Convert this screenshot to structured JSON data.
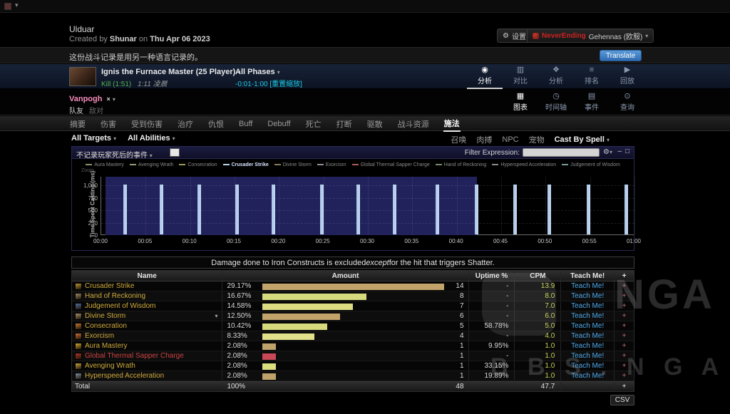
{
  "icons": {
    "caret": "▾",
    "gear": "⚙",
    "eye": "◉",
    "compare": "▥",
    "puzzle": "❖",
    "ranking": "≡",
    "replay": "▶",
    "grid": "▦",
    "clock": "◷",
    "list": "▤",
    "pin": "⊙",
    "close": "×",
    "minimize": "–",
    "maximize": "□",
    "plus": "+"
  },
  "header": {
    "title": "Ulduar",
    "created_prefix": "Created by",
    "author": "Shunar",
    "created_mid": "on",
    "created_date": "Thu Apr 06 2023",
    "settings_label": "设置",
    "guild_name": "NeverEnding",
    "guild_server": "Gehennas (欧服)"
  },
  "language_banner": {
    "text": "这份战斗记录是用另一种语言记录的。",
    "translate_label": "Translate"
  },
  "fight_bar": {
    "boss_name": "Ignis the Furnace Master (25 Player)",
    "kill_label": "Kill (1:51)",
    "kill_time": "1:11 凌晨",
    "phases_label": "All Phases",
    "time_range": "-0:01-1:00",
    "reset_zoom_label": "[重置缩放]",
    "views": [
      {
        "label": "分析",
        "icon": "eye",
        "active": true
      },
      {
        "label": "对比",
        "icon": "compare",
        "active": false
      },
      {
        "label": "分析",
        "icon": "puzzle",
        "active": false
      },
      {
        "label": "排名",
        "icon": "ranking",
        "active": false
      },
      {
        "label": "回放",
        "icon": "replay",
        "active": false
      }
    ]
  },
  "player_bar": {
    "player_name": "Vanpogh",
    "groups": [
      {
        "label": "队友",
        "active": true
      },
      {
        "label": "敌对",
        "active": false
      }
    ],
    "views": [
      {
        "label": "图表",
        "icon": "grid",
        "active": true
      },
      {
        "label": "时间轴",
        "icon": "clock",
        "active": false
      },
      {
        "label": "事件",
        "icon": "list",
        "active": false
      },
      {
        "label": "查询",
        "icon": "pin",
        "active": false
      }
    ]
  },
  "tabs": {
    "items": [
      "摘要",
      "伤害",
      "受到伤害",
      "治疗",
      "仇恨",
      "Buff",
      "Debuff",
      "死亡",
      "打断",
      "驱散",
      "战斗资源",
      "施法"
    ],
    "active_index": 11
  },
  "filter_bar": {
    "targets_label": "All Targets",
    "abilities_label": "All Abilities",
    "right_items": [
      "召唤",
      "肉搏",
      "NPC",
      "宠物"
    ],
    "cast_by_label": "Cast By Spell"
  },
  "chart_panel": {
    "option_label": "不记录玩家死后的事件",
    "filter_label": "Filter Expression:",
    "filter_value": ""
  },
  "chart_data": {
    "type": "bar",
    "title": "",
    "xlabel": "",
    "ylabel": "Time Spent Casting (ms)",
    "zoom_label": "Zoom",
    "ylim": [
      0,
      1171
    ],
    "grid": true,
    "legend_position": "top",
    "yticks": [
      {
        "v": 1000,
        "label": "1,000"
      },
      {
        "v": 750,
        "label": "750"
      },
      {
        "v": 500,
        "label": "500"
      },
      {
        "v": 250,
        "label": "250"
      },
      {
        "v": 0,
        "label": "0"
      }
    ],
    "xticks": [
      {
        "s": 0,
        "label": "00:00"
      },
      {
        "s": 5,
        "label": "00:05"
      },
      {
        "s": 10,
        "label": "00:10"
      },
      {
        "s": 15,
        "label": "00:15"
      },
      {
        "s": 20,
        "label": "00:20"
      },
      {
        "s": 25,
        "label": "00:25"
      },
      {
        "s": 30,
        "label": "00:30"
      },
      {
        "s": 35,
        "label": "00:35"
      },
      {
        "s": 40,
        "label": "00:40"
      },
      {
        "s": 45,
        "label": "00:45"
      },
      {
        "s": 50,
        "label": "00:50"
      },
      {
        "s": 55,
        "label": "00:55"
      },
      {
        "s": 60,
        "label": "01:00"
      }
    ],
    "selection_seconds": [
      0.5,
      42.3
    ],
    "highlight_series": "Crusader Strike",
    "bar_color": "#a9c6e8",
    "x_seconds": [
      2.7,
      6.8,
      11.0,
      15.3,
      19.4,
      24.8,
      28.9,
      33.0,
      37.8,
      42.2,
      46.6,
      50.4,
      54.8,
      59.1
    ],
    "values_ms": [
      1000,
      1000,
      1000,
      1000,
      1000,
      1000,
      1000,
      1000,
      1000,
      1000,
      1000,
      1000,
      1000,
      1000
    ],
    "legend": [
      {
        "label": "Aura Mastery",
        "color": "#8f8f6f",
        "highlight": false
      },
      {
        "label": "Avenging Wrath",
        "color": "#9a9a7a",
        "highlight": false
      },
      {
        "label": "Consecration",
        "color": "#9a9a5a",
        "highlight": false
      },
      {
        "label": "Crusader Strike",
        "color": "#bcd2f0",
        "highlight": true
      },
      {
        "label": "Divine Storm",
        "color": "#8a7a5a",
        "highlight": false
      },
      {
        "label": "Exorcism",
        "color": "#9a8a9a",
        "highlight": false
      },
      {
        "label": "Global Thermal Sapper Charge",
        "color": "#aa5a5a",
        "highlight": false
      },
      {
        "label": "Hand of Reckoning",
        "color": "#7a8a6a",
        "highlight": false
      },
      {
        "label": "Hyperspeed Acceleration",
        "color": "#8a8a8a",
        "highlight": false
      },
      {
        "label": "Judgement of Wisdom",
        "color": "#7a9a9a",
        "highlight": false
      }
    ]
  },
  "notice": {
    "text_before": "Damage done to Iron Constructs is excluded ",
    "text_em": "except",
    "text_after": " for the hit that triggers Shatter."
  },
  "table": {
    "columns": [
      "Name",
      "Amount",
      "Uptime %",
      "CPM",
      "Teach Me!",
      "+"
    ],
    "teach_label": "Teach Me!",
    "rows": [
      {
        "name": "Crusader Strike",
        "pct": "29.17%",
        "pct_v": 29.17,
        "count": "14",
        "uptime": "-",
        "cpm": "13.9",
        "bar_color": "#c2a36a",
        "name_color": "#d0ab3c",
        "icon_color": "#b8932f",
        "has_caret": false
      },
      {
        "name": "Hand of Reckoning",
        "pct": "16.67%",
        "pct_v": 16.67,
        "count": "8",
        "uptime": "-",
        "cpm": "8.0",
        "bar_color": "#d6da7c",
        "name_color": "#d0ab3c",
        "icon_color": "#9a8a68",
        "has_caret": false
      },
      {
        "name": "Judgement of Wisdom",
        "pct": "14.58%",
        "pct_v": 14.58,
        "count": "7",
        "uptime": "-",
        "cpm": "7.0",
        "bar_color": "#dcdc82",
        "name_color": "#d0ab3c",
        "icon_color": "#4f6f9f",
        "has_caret": false
      },
      {
        "name": "Divine Storm",
        "pct": "12.50%",
        "pct_v": 12.5,
        "count": "6",
        "uptime": "-",
        "cpm": "6.0",
        "bar_color": "#c2a36a",
        "name_color": "#d0ab3c",
        "icon_color": "#a8906a",
        "has_caret": true
      },
      {
        "name": "Consecration",
        "pct": "10.42%",
        "pct_v": 10.42,
        "count": "5",
        "uptime": "58.78%",
        "cpm": "5.0",
        "bar_color": "#d6da7c",
        "name_color": "#d0ab3c",
        "icon_color": "#c47a2e",
        "has_caret": false
      },
      {
        "name": "Exorcism",
        "pct": "8.33%",
        "pct_v": 8.33,
        "count": "4",
        "uptime": "-",
        "cpm": "4.0",
        "bar_color": "#e0e08a",
        "name_color": "#d0ab3c",
        "icon_color": "#cf7030",
        "has_caret": false
      },
      {
        "name": "Aura Mastery",
        "pct": "2.08%",
        "pct_v": 2.08,
        "count": "1",
        "uptime": "9.95%",
        "cpm": "1.0",
        "bar_color": "#bfa26a",
        "name_color": "#d0ab3c",
        "icon_color": "#d2a62e",
        "has_caret": false
      },
      {
        "name": "Global Thermal Sapper Charge",
        "pct": "2.08%",
        "pct_v": 2.08,
        "count": "1",
        "uptime": "-",
        "cpm": "1.0",
        "bar_color": "#c84858",
        "name_color": "#cc4242",
        "icon_color": "#b03424",
        "has_caret": false
      },
      {
        "name": "Avenging Wrath",
        "pct": "2.08%",
        "pct_v": 2.08,
        "count": "1",
        "uptime": "33.15%",
        "cpm": "1.0",
        "bar_color": "#dade7e",
        "name_color": "#d0ab3c",
        "icon_color": "#caa43c",
        "has_caret": false
      },
      {
        "name": "Hyperspeed Acceleration",
        "pct": "2.08%",
        "pct_v": 2.08,
        "count": "1",
        "uptime": "19.89%",
        "cpm": "1.0",
        "bar_color": "#bfa26a",
        "name_color": "#d0ab3c",
        "icon_color": "#7e8e9e",
        "has_caret": false
      }
    ],
    "total": {
      "name": "Total",
      "pct": "100%",
      "count": "48",
      "uptime": "",
      "cpm": "47.7"
    }
  },
  "footer": {
    "csv_label": "CSV"
  },
  "watermark": {
    "line": "B B S . N G A . C N",
    "logo_text": "NGA"
  }
}
